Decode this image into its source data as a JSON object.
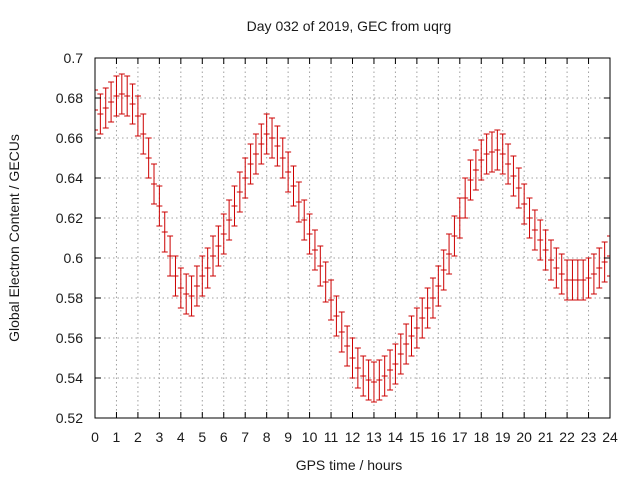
{
  "chart_data": {
    "type": "line",
    "style": "errorbars",
    "title": "Day 032 of 2019, GEC from uqrg",
    "xlabel": "GPS time / hours",
    "ylabel": "Global Electron Content / GECUs",
    "xlim": [
      0,
      24
    ],
    "ylim": [
      0.52,
      0.7
    ],
    "grid": true,
    "x_ticks": [
      0,
      1,
      2,
      3,
      4,
      5,
      6,
      7,
      8,
      9,
      10,
      11,
      12,
      13,
      14,
      15,
      16,
      17,
      18,
      19,
      20,
      21,
      22,
      23,
      24
    ],
    "x_tick_labels": [
      "0",
      "1",
      "2",
      "3",
      "4",
      "5",
      "6",
      "7",
      "8",
      "9",
      "10",
      "11",
      "12",
      "13",
      "14",
      "15",
      "16",
      "17",
      "18",
      "19",
      "20",
      "21",
      "22",
      "23",
      "24"
    ],
    "y_ticks": [
      0.52,
      0.54,
      0.56,
      0.58,
      0.6,
      0.62,
      0.64,
      0.66,
      0.68,
      0.7
    ],
    "y_tick_labels": [
      "0.52",
      "0.54",
      "0.56",
      "0.58",
      "0.6",
      "0.62",
      "0.64",
      "0.66",
      "0.68",
      "0.7"
    ],
    "series": [
      {
        "name": "GEC",
        "color": "#cc0000",
        "error": 0.01,
        "x": [
          0,
          0.25,
          0.5,
          0.75,
          1,
          1.25,
          1.5,
          1.75,
          2,
          2.25,
          2.5,
          2.75,
          3,
          3.25,
          3.5,
          3.75,
          4,
          4.25,
          4.5,
          4.75,
          5,
          5.25,
          5.5,
          5.75,
          6,
          6.25,
          6.5,
          6.75,
          7,
          7.25,
          7.5,
          7.75,
          8,
          8.25,
          8.5,
          8.75,
          9,
          9.25,
          9.5,
          9.75,
          10,
          10.25,
          10.5,
          10.75,
          11,
          11.25,
          11.5,
          11.75,
          12,
          12.25,
          12.5,
          12.75,
          13,
          13.25,
          13.5,
          13.75,
          14,
          14.25,
          14.5,
          14.75,
          15,
          15.25,
          15.5,
          15.75,
          16,
          16.25,
          16.5,
          16.75,
          17,
          17.25,
          17.5,
          17.75,
          18,
          18.25,
          18.5,
          18.75,
          19,
          19.25,
          19.5,
          19.75,
          20,
          20.25,
          20.5,
          20.75,
          21,
          21.25,
          21.5,
          21.75,
          22,
          22.25,
          22.5,
          22.75,
          23,
          23.25,
          23.5,
          23.75,
          24
        ],
        "y": [
          0.674,
          0.672,
          0.675,
          0.678,
          0.681,
          0.682,
          0.681,
          0.677,
          0.671,
          0.662,
          0.65,
          0.637,
          0.626,
          0.613,
          0.601,
          0.591,
          0.585,
          0.582,
          0.581,
          0.586,
          0.591,
          0.595,
          0.601,
          0.606,
          0.612,
          0.619,
          0.626,
          0.633,
          0.64,
          0.647,
          0.652,
          0.657,
          0.662,
          0.66,
          0.656,
          0.65,
          0.643,
          0.636,
          0.628,
          0.619,
          0.612,
          0.604,
          0.596,
          0.588,
          0.579,
          0.571,
          0.563,
          0.556,
          0.55,
          0.545,
          0.541,
          0.539,
          0.538,
          0.539,
          0.541,
          0.544,
          0.547,
          0.552,
          0.557,
          0.561,
          0.565,
          0.57,
          0.575,
          0.58,
          0.586,
          0.594,
          0.602,
          0.611,
          0.62,
          0.63,
          0.639,
          0.644,
          0.649,
          0.652,
          0.653,
          0.654,
          0.652,
          0.647,
          0.641,
          0.635,
          0.627,
          0.62,
          0.614,
          0.609,
          0.604,
          0.599,
          0.595,
          0.592,
          0.589,
          0.589,
          0.589,
          0.589,
          0.59,
          0.592,
          0.595,
          0.598,
          0.601
        ]
      }
    ]
  }
}
